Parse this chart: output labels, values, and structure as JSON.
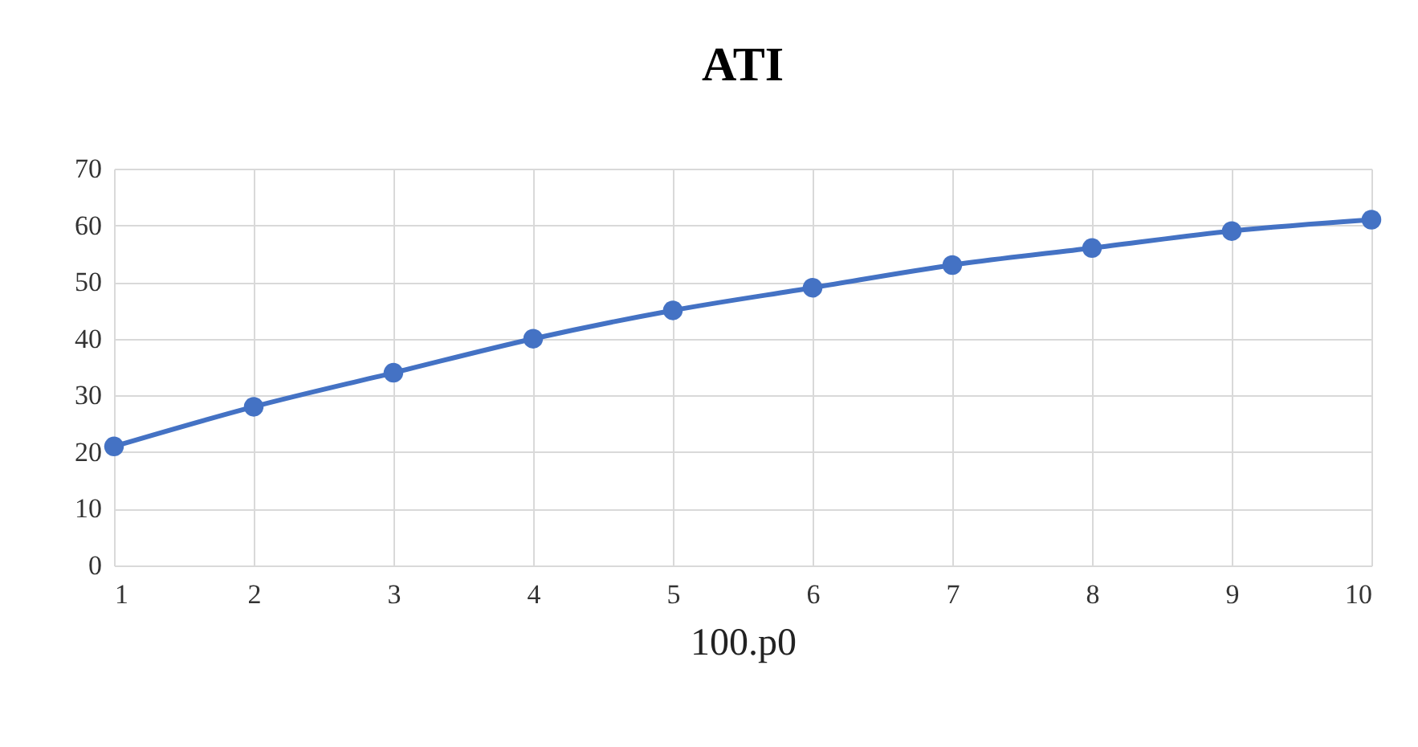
{
  "chart_data": {
    "type": "line",
    "title": "ATI",
    "xlabel": "100.p0",
    "x": [
      1,
      2,
      3,
      4,
      5,
      6,
      7,
      8,
      9,
      10
    ],
    "series": [
      {
        "color": "#4472c4",
        "values": [
          21,
          28,
          34,
          40,
          45,
          49,
          53,
          56,
          59,
          61
        ]
      }
    ],
    "xlim": [
      1,
      10
    ],
    "xticks": [
      1,
      2,
      3,
      4,
      5,
      6,
      7,
      8,
      9,
      10
    ],
    "ylim": [
      0,
      70
    ],
    "yticks": [
      0,
      10,
      20,
      30,
      40,
      50,
      60,
      70
    ],
    "grid": true,
    "marker": "circle",
    "line_style": "solid"
  }
}
